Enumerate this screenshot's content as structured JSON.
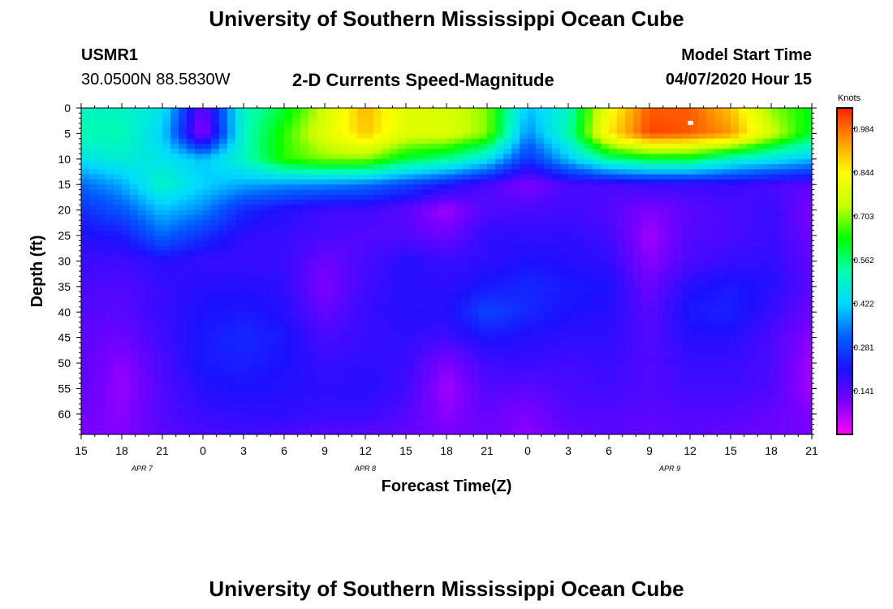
{
  "page": {
    "top_title": "University of Southern Mississippi Ocean Cube",
    "bottom_title": "University of Southern Mississippi Ocean Cube",
    "station_id": "USMR1",
    "station_coords": "30.0500N 88.5830W",
    "plot_title": "2-D Currents Speed-Magnitude",
    "model_start_label": "Model Start Time",
    "model_start_value": "04/07/2020 Hour 15"
  },
  "colors": {
    "scale": [
      "#ff00ff",
      "#7a00ff",
      "#1c10ff",
      "#0060ff",
      "#00d8ff",
      "#00ffb0",
      "#00ff00",
      "#c8ff00",
      "#ffff00",
      "#ff9900",
      "#ff2000"
    ],
    "scale_max_value": 1.05
  },
  "chart_data": {
    "type": "heatmap",
    "xlabel": "Forecast Time(Z)",
    "ylabel": "Depth (ft)",
    "x_tick_labels": [
      "15",
      "18",
      "21",
      "0",
      "3",
      "6",
      "9",
      "12",
      "15",
      "18",
      "21",
      "0",
      "3",
      "6",
      "9",
      "12",
      "15",
      "18",
      "21"
    ],
    "date_labels": [
      {
        "text": "APR 7",
        "hour_index": 1.5
      },
      {
        "text": "APR 8",
        "hour_index": 7
      },
      {
        "text": "APR 9",
        "hour_index": 14.5
      }
    ],
    "xlim": [
      0,
      18
    ],
    "y_ticks": [
      0,
      5,
      10,
      15,
      20,
      25,
      30,
      35,
      40,
      45,
      50,
      55,
      60
    ],
    "ylim": [
      0,
      64
    ],
    "colorbar": {
      "label": "Knots",
      "ticks": [
        0.141,
        0.281,
        0.422,
        0.562,
        0.703,
        0.844,
        0.984
      ]
    },
    "depth_rows": [
      0,
      5,
      10,
      15,
      20,
      25,
      30,
      35,
      40,
      45,
      50,
      55,
      60,
      64
    ],
    "time_columns": [
      0,
      1,
      2,
      3,
      4,
      5,
      6,
      7,
      8,
      9,
      10,
      11,
      12,
      13,
      14,
      15,
      16,
      17,
      18
    ],
    "values": [
      [
        0.5,
        0.5,
        0.45,
        0.12,
        0.5,
        0.6,
        0.75,
        0.92,
        0.78,
        0.76,
        0.7,
        0.4,
        0.5,
        0.82,
        1.0,
        1.0,
        0.9,
        0.7,
        0.62
      ],
      [
        0.52,
        0.52,
        0.42,
        0.08,
        0.5,
        0.65,
        0.78,
        0.9,
        0.78,
        0.78,
        0.7,
        0.35,
        0.52,
        0.86,
        1.02,
        1.0,
        0.95,
        0.76,
        0.6
      ],
      [
        0.45,
        0.48,
        0.45,
        0.4,
        0.5,
        0.65,
        0.7,
        0.7,
        0.6,
        0.55,
        0.45,
        0.25,
        0.4,
        0.55,
        0.6,
        0.6,
        0.5,
        0.45,
        0.4
      ],
      [
        0.32,
        0.38,
        0.5,
        0.42,
        0.38,
        0.36,
        0.35,
        0.33,
        0.28,
        0.22,
        0.16,
        0.1,
        0.16,
        0.16,
        0.18,
        0.18,
        0.18,
        0.16,
        0.14
      ],
      [
        0.25,
        0.3,
        0.4,
        0.35,
        0.24,
        0.2,
        0.17,
        0.17,
        0.14,
        0.07,
        0.15,
        0.16,
        0.17,
        0.15,
        0.1,
        0.14,
        0.16,
        0.18,
        0.1
      ],
      [
        0.2,
        0.22,
        0.32,
        0.25,
        0.19,
        0.18,
        0.16,
        0.15,
        0.15,
        0.12,
        0.19,
        0.19,
        0.19,
        0.17,
        0.07,
        0.15,
        0.16,
        0.18,
        0.12
      ],
      [
        0.18,
        0.17,
        0.2,
        0.18,
        0.18,
        0.18,
        0.12,
        0.16,
        0.2,
        0.18,
        0.19,
        0.21,
        0.2,
        0.19,
        0.09,
        0.16,
        0.18,
        0.19,
        0.13
      ],
      [
        0.16,
        0.15,
        0.18,
        0.2,
        0.2,
        0.19,
        0.1,
        0.17,
        0.2,
        0.19,
        0.22,
        0.24,
        0.22,
        0.21,
        0.12,
        0.2,
        0.22,
        0.2,
        0.14
      ],
      [
        0.15,
        0.14,
        0.18,
        0.21,
        0.22,
        0.2,
        0.13,
        0.18,
        0.2,
        0.2,
        0.28,
        0.24,
        0.21,
        0.2,
        0.14,
        0.22,
        0.23,
        0.18,
        0.12
      ],
      [
        0.14,
        0.12,
        0.17,
        0.22,
        0.24,
        0.22,
        0.16,
        0.18,
        0.19,
        0.17,
        0.22,
        0.2,
        0.19,
        0.19,
        0.15,
        0.2,
        0.2,
        0.16,
        0.09
      ],
      [
        0.14,
        0.09,
        0.16,
        0.22,
        0.23,
        0.21,
        0.18,
        0.19,
        0.18,
        0.1,
        0.17,
        0.18,
        0.17,
        0.18,
        0.15,
        0.18,
        0.18,
        0.16,
        0.07
      ],
      [
        0.14,
        0.08,
        0.15,
        0.2,
        0.21,
        0.2,
        0.19,
        0.2,
        0.17,
        0.07,
        0.15,
        0.14,
        0.16,
        0.17,
        0.15,
        0.17,
        0.17,
        0.15,
        0.07
      ],
      [
        0.12,
        0.09,
        0.15,
        0.18,
        0.19,
        0.19,
        0.18,
        0.18,
        0.15,
        0.09,
        0.13,
        0.1,
        0.15,
        0.15,
        0.14,
        0.15,
        0.15,
        0.13,
        0.1
      ],
      [
        0.11,
        0.1,
        0.14,
        0.16,
        0.17,
        0.16,
        0.14,
        0.14,
        0.13,
        0.11,
        0.12,
        0.09,
        0.13,
        0.14,
        0.13,
        0.14,
        0.13,
        0.12,
        0.11
      ]
    ],
    "max_marker": {
      "time_index": 15,
      "depth": 3
    }
  }
}
